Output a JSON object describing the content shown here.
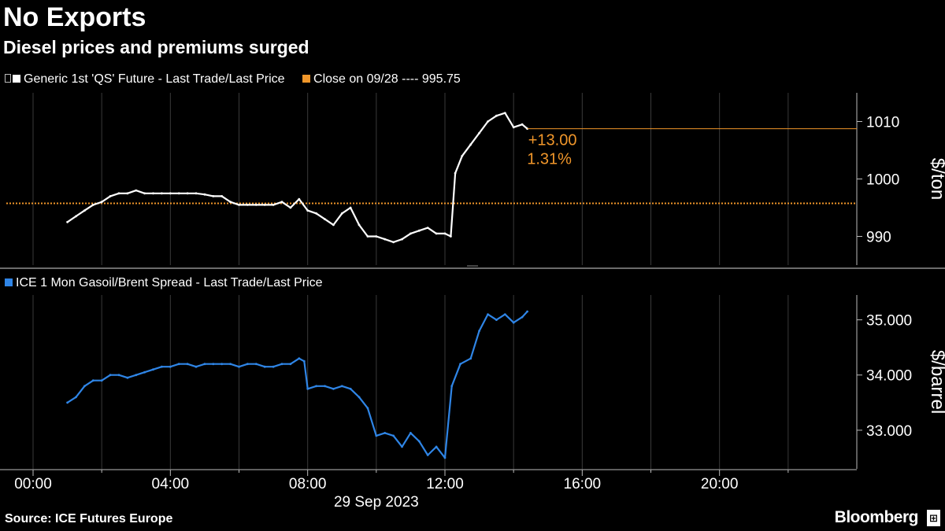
{
  "title": "No Exports",
  "subtitle": "Diesel prices and premiums surged",
  "source": "Source: ICE Futures Europe",
  "brand": "Bloomberg",
  "brand_icon_name": "bloomberg-terminal-icon",
  "colors": {
    "background": "#000000",
    "series_top": "#ffffff",
    "close_line": "#f0962a",
    "series_bottom": "#2f85e6",
    "grid": "#3a3a3a",
    "divider": "#6b6b6b"
  },
  "chart_data": [
    {
      "type": "line",
      "ylabel": "$/ton",
      "ylim": [
        985,
        1015
      ],
      "yticks": [
        990,
        1000,
        1010
      ],
      "yticklabels": [
        "990",
        "1000",
        "1010"
      ],
      "legend": [
        {
          "label": "Generic 1st 'QS' Future - Last Trade/Last Price",
          "color": "#ffffff"
        },
        {
          "label": "Close on 09/28 ---- 995.75",
          "color": "#f0962a"
        }
      ],
      "reference_line": {
        "name": "Close on 09/28",
        "value": 995.75
      },
      "annotation": {
        "change": "+13.00",
        "percent": "1.31%",
        "last": 1008.75
      },
      "series": [
        {
          "name": "Generic 1st 'QS' Future - Last Trade/Last Price",
          "x": [
            1.0,
            1.25,
            1.5,
            1.75,
            2.0,
            2.25,
            2.5,
            2.75,
            3.0,
            3.25,
            3.5,
            3.75,
            4.0,
            4.25,
            4.5,
            4.75,
            5.0,
            5.25,
            5.5,
            5.75,
            6.0,
            6.25,
            6.5,
            6.75,
            7.0,
            7.25,
            7.5,
            7.75,
            8.0,
            8.25,
            8.5,
            8.75,
            9.0,
            9.25,
            9.5,
            9.75,
            10.0,
            10.25,
            10.5,
            10.75,
            11.0,
            11.25,
            11.5,
            11.75,
            12.0,
            12.17,
            12.3,
            12.5,
            12.75,
            13.0,
            13.25,
            13.5,
            13.75,
            14.0,
            14.25,
            14.4
          ],
          "values": [
            992.5,
            993.5,
            994.5,
            995.5,
            996.0,
            997.0,
            997.5,
            997.5,
            998.0,
            997.5,
            997.5,
            997.5,
            997.5,
            997.5,
            997.5,
            997.5,
            997.3,
            997.0,
            997.0,
            996.0,
            995.5,
            995.5,
            995.5,
            995.5,
            995.5,
            996.0,
            995.0,
            996.5,
            994.5,
            994.0,
            993.0,
            992.0,
            994.0,
            995.0,
            992.0,
            990.0,
            990.0,
            989.5,
            989.0,
            989.5,
            990.5,
            991.0,
            991.5,
            990.5,
            990.5,
            990.0,
            1001.0,
            1004.0,
            1006.0,
            1008.0,
            1010.0,
            1011.0,
            1011.5,
            1009.0,
            1009.5,
            1008.75
          ]
        }
      ],
      "xticks": [
        0,
        4,
        8,
        12,
        16,
        20
      ],
      "xticklabels": [
        "00:00",
        "04:00",
        "08:00",
        "12:00",
        "16:00",
        "20:00"
      ],
      "xlabel": "29 Sep 2023",
      "xlim": [
        0,
        24
      ],
      "grid": "vertical"
    },
    {
      "type": "line",
      "ylabel": "$/barrel",
      "ylim": [
        32.3,
        35.45
      ],
      "yticks": [
        33.0,
        34.0,
        35.0
      ],
      "yticklabels": [
        "33.000",
        "34.000",
        "35.000"
      ],
      "legend": [
        {
          "label": "ICE 1 Mon Gasoil/Brent Spread - Last Trade/Last Price",
          "color": "#2f85e6"
        }
      ],
      "series": [
        {
          "name": "ICE 1 Mon Gasoil/Brent Spread - Last Trade/Last Price",
          "x": [
            1.0,
            1.25,
            1.5,
            1.75,
            2.0,
            2.25,
            2.5,
            2.75,
            3.0,
            3.25,
            3.5,
            3.75,
            4.0,
            4.25,
            4.5,
            4.75,
            5.0,
            5.25,
            5.5,
            5.75,
            6.0,
            6.25,
            6.5,
            6.75,
            7.0,
            7.25,
            7.5,
            7.75,
            7.9,
            8.0,
            8.25,
            8.5,
            8.75,
            9.0,
            9.25,
            9.5,
            9.75,
            10.0,
            10.25,
            10.5,
            10.75,
            11.0,
            11.25,
            11.5,
            11.75,
            12.0,
            12.2,
            12.45,
            12.75,
            13.0,
            13.25,
            13.5,
            13.75,
            14.0,
            14.25,
            14.4
          ],
          "values": [
            33.5,
            33.6,
            33.8,
            33.9,
            33.9,
            34.0,
            34.0,
            33.95,
            34.0,
            34.05,
            34.1,
            34.15,
            34.15,
            34.2,
            34.2,
            34.15,
            34.2,
            34.2,
            34.2,
            34.2,
            34.15,
            34.2,
            34.2,
            34.15,
            34.15,
            34.2,
            34.2,
            34.3,
            34.25,
            33.75,
            33.8,
            33.8,
            33.75,
            33.8,
            33.75,
            33.6,
            33.4,
            32.9,
            32.95,
            32.9,
            32.7,
            32.95,
            32.8,
            32.55,
            32.7,
            32.5,
            33.8,
            34.2,
            34.3,
            34.8,
            35.1,
            35.0,
            35.1,
            34.95,
            35.05,
            35.15
          ]
        }
      ],
      "xticks": [
        0,
        4,
        8,
        12,
        16,
        20
      ],
      "xticklabels": [
        "00:00",
        "04:00",
        "08:00",
        "12:00",
        "16:00",
        "20:00"
      ],
      "xlabel": "29 Sep 2023",
      "xlim": [
        0,
        24
      ],
      "grid": "vertical"
    }
  ]
}
